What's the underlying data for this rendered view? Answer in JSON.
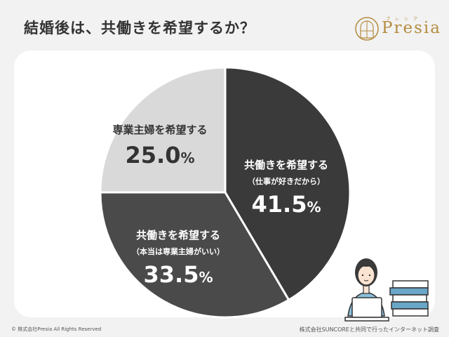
{
  "header": {
    "title": "結婚後は、共働きを希望するか？",
    "logo_text": "Presia",
    "logo_kana": "プレシア"
  },
  "chart_data": {
    "type": "pie",
    "segments": [
      {
        "label": "共働きを希望する",
        "sublabel": "（仕事が好きだから）",
        "value": 41.5,
        "display": "41.5",
        "unit": "%",
        "color": "#3a3a3a",
        "text_color": "#ffffff"
      },
      {
        "label": "共働きを希望する",
        "sublabel": "（本当は専業主婦がいい）",
        "value": 33.5,
        "display": "33.5",
        "unit": "%",
        "color": "#4a4a4a",
        "text_color": "#ffffff"
      },
      {
        "label": "専業主婦を希望する",
        "sublabel": "",
        "value": 25.0,
        "display": "25.0",
        "unit": "%",
        "color": "#d9d9d9",
        "text_color": "#333333"
      }
    ],
    "start": "12 o'clock",
    "direction": "clockwise"
  },
  "footer": {
    "copyright": "© 株式会社Presia All Rights Reserved",
    "source": "株式会社SUNCOREと共同で行ったインターネット調査"
  },
  "illustration": {
    "icon": "woman-at-laptop-with-books-icon"
  }
}
